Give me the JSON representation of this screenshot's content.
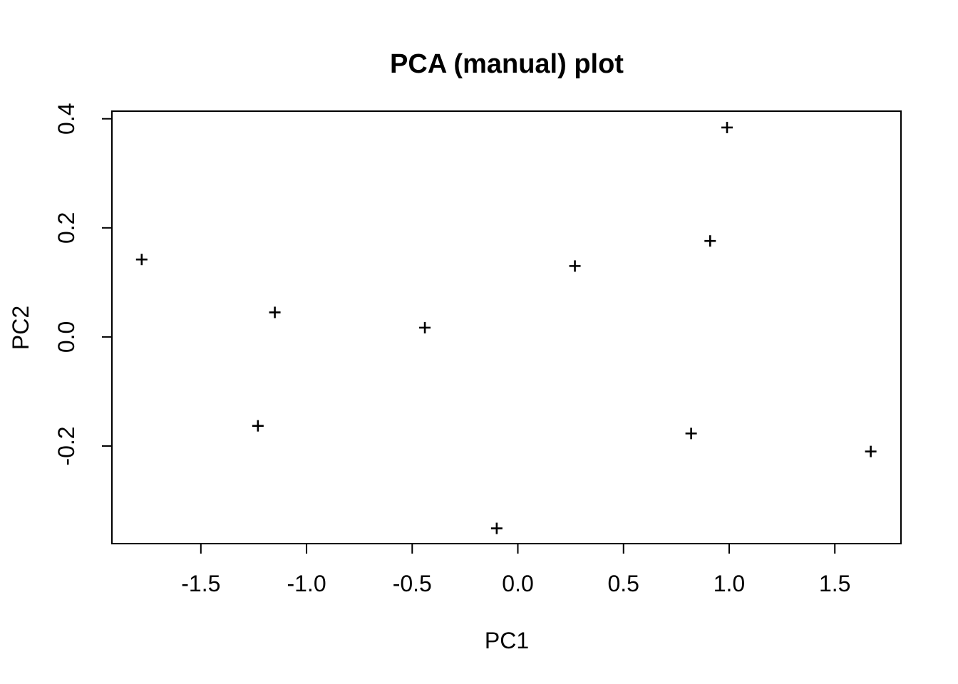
{
  "chart_data": {
    "type": "scatter",
    "title": "PCA (manual) plot",
    "xlabel": "PC1",
    "ylabel": "PC2",
    "marker": "plus",
    "grid": false,
    "legend": null,
    "xlim": [
      -1.921,
      1.813
    ],
    "ylim": [
      -0.379,
      0.414
    ],
    "x_ticks": [
      {
        "value": -1.5,
        "label": "-1.5"
      },
      {
        "value": -1.0,
        "label": "-1.0"
      },
      {
        "value": -0.5,
        "label": "-0.5"
      },
      {
        "value": 0.0,
        "label": "0.0"
      },
      {
        "value": 0.5,
        "label": "0.5"
      },
      {
        "value": 1.0,
        "label": "1.0"
      },
      {
        "value": 1.5,
        "label": "1.5"
      }
    ],
    "y_ticks": [
      {
        "value": -0.2,
        "label": "-0.2"
      },
      {
        "value": 0.0,
        "label": "0.0"
      },
      {
        "value": 0.2,
        "label": "0.2"
      },
      {
        "value": 0.4,
        "label": "0.4"
      }
    ],
    "points": [
      {
        "x": -1.78,
        "y": 0.142
      },
      {
        "x": -1.23,
        "y": -0.163
      },
      {
        "x": -1.15,
        "y": 0.045
      },
      {
        "x": -0.44,
        "y": 0.017
      },
      {
        "x": -0.1,
        "y": -0.351
      },
      {
        "x": 0.27,
        "y": 0.13
      },
      {
        "x": 0.82,
        "y": -0.177
      },
      {
        "x": 0.91,
        "y": 0.176
      },
      {
        "x": 0.99,
        "y": 0.384
      },
      {
        "x": 1.67,
        "y": -0.21
      }
    ],
    "colors": {
      "foreground": "#000000",
      "background": "#ffffff"
    }
  }
}
